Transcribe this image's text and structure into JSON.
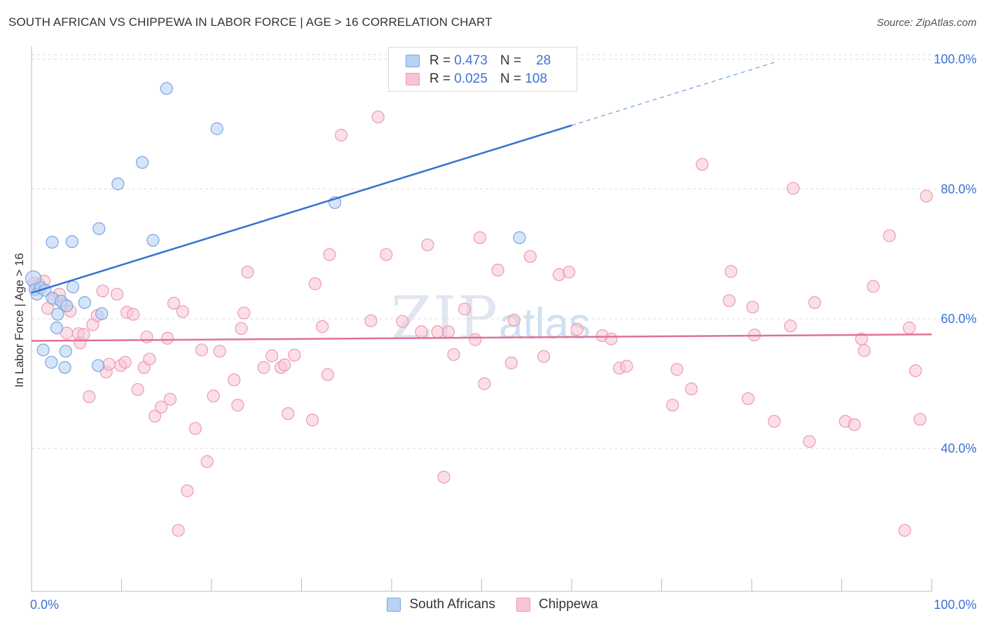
{
  "title": "SOUTH AFRICAN VS CHIPPEWA IN LABOR FORCE | AGE > 16 CORRELATION CHART",
  "source": "Source: ZipAtlas.com",
  "watermark": {
    "zip": "ZIP",
    "atlas": "atlas"
  },
  "legend": {
    "rows": [
      {
        "r_label": "R =",
        "r_value": "0.473",
        "n_label": "N =",
        "n_value": "28"
      },
      {
        "r_label": "R =",
        "r_value": "0.025",
        "n_label": "N =",
        "n_value": "108"
      }
    ],
    "bottom": [
      "South Africans",
      "Chippewa"
    ]
  },
  "colors": {
    "blue_fill": "#b9d2f3",
    "blue_stroke": "#7aa5e0",
    "blue_line": "#3472d0",
    "pink_fill": "#f7c4d4",
    "pink_stroke": "#ec9ab3",
    "pink_line": "#e0709a",
    "grid": "#dddddd",
    "tick_label": "#3b73d6"
  },
  "chart_data": {
    "type": "scatter",
    "title": "SOUTH AFRICAN VS CHIPPEWA IN LABOR FORCE | AGE > 16 CORRELATION CHART",
    "xlabel": "",
    "ylabel": "In Labor Force | Age > 16",
    "xlim": [
      0,
      100
    ],
    "ylim": [
      18,
      102
    ],
    "x_tick_labels": [
      "0.0%",
      "100.0%"
    ],
    "y_tick_labels": [
      "40.0%",
      "60.0%",
      "80.0%",
      "100.0%"
    ],
    "y_ticks": [
      40,
      60,
      80,
      100
    ],
    "grid": true,
    "legend_position": "top-center",
    "series": [
      {
        "name": "South Africans",
        "r": 0.473,
        "n": 28,
        "points": [
          [
            0.2,
            66.2
          ],
          [
            0.4,
            64.5
          ],
          [
            0.6,
            63.8
          ],
          [
            1.0,
            64.8
          ],
          [
            1.5,
            64.4
          ],
          [
            1.3,
            55.2
          ],
          [
            2.2,
            53.3
          ],
          [
            2.3,
            71.8
          ],
          [
            2.3,
            63.2
          ],
          [
            2.8,
            58.6
          ],
          [
            2.9,
            60.7
          ],
          [
            3.3,
            62.7
          ],
          [
            3.7,
            52.5
          ],
          [
            3.8,
            55.0
          ],
          [
            3.9,
            62.0
          ],
          [
            4.5,
            71.9
          ],
          [
            4.6,
            64.9
          ],
          [
            5.9,
            62.5
          ],
          [
            7.4,
            52.8
          ],
          [
            7.5,
            73.9
          ],
          [
            7.8,
            60.8
          ],
          [
            9.6,
            80.8
          ],
          [
            12.3,
            84.1
          ],
          [
            13.5,
            72.1
          ],
          [
            15.0,
            95.5
          ],
          [
            20.6,
            89.3
          ],
          [
            33.7,
            77.9
          ],
          [
            54.2,
            72.5
          ]
        ],
        "trend": {
          "x_start": 0.0,
          "y_start": 64.0,
          "x_end": 60.0,
          "y_end": 89.8,
          "x_dash_end": 82.5,
          "y_dash_end": 99.5
        }
      },
      {
        "name": "Chippewa",
        "r": 0.025,
        "n": 108,
        "points": [
          [
            0.3,
            65.5
          ],
          [
            0.9,
            65.2
          ],
          [
            1.4,
            65.8
          ],
          [
            1.8,
            61.6
          ],
          [
            2.5,
            63.0
          ],
          [
            3.1,
            63.8
          ],
          [
            3.6,
            62.2
          ],
          [
            3.9,
            57.8
          ],
          [
            4.3,
            61.2
          ],
          [
            5.2,
            57.7
          ],
          [
            5.4,
            56.3
          ],
          [
            5.8,
            57.6
          ],
          [
            6.4,
            48.0
          ],
          [
            6.8,
            59.1
          ],
          [
            7.3,
            60.5
          ],
          [
            7.9,
            64.3
          ],
          [
            8.3,
            51.8
          ],
          [
            8.6,
            53.0
          ],
          [
            9.5,
            63.8
          ],
          [
            9.9,
            52.8
          ],
          [
            10.4,
            53.3
          ],
          [
            10.6,
            61.0
          ],
          [
            11.3,
            60.7
          ],
          [
            11.8,
            49.1
          ],
          [
            12.5,
            52.5
          ],
          [
            12.8,
            57.2
          ],
          [
            13.1,
            53.8
          ],
          [
            13.7,
            45.0
          ],
          [
            14.4,
            46.4
          ],
          [
            15.1,
            57.0
          ],
          [
            15.4,
            47.6
          ],
          [
            15.8,
            62.4
          ],
          [
            16.3,
            27.4
          ],
          [
            16.8,
            61.1
          ],
          [
            17.3,
            33.5
          ],
          [
            18.2,
            43.1
          ],
          [
            18.9,
            55.2
          ],
          [
            19.5,
            38.0
          ],
          [
            20.2,
            48.1
          ],
          [
            20.9,
            55.0
          ],
          [
            22.5,
            50.6
          ],
          [
            22.9,
            46.7
          ],
          [
            23.3,
            58.5
          ],
          [
            23.6,
            60.9
          ],
          [
            24.0,
            67.2
          ],
          [
            25.8,
            52.5
          ],
          [
            26.7,
            54.3
          ],
          [
            27.7,
            52.5
          ],
          [
            28.1,
            52.9
          ],
          [
            28.5,
            45.4
          ],
          [
            29.2,
            54.4
          ],
          [
            31.2,
            44.4
          ],
          [
            31.5,
            65.4
          ],
          [
            32.3,
            58.8
          ],
          [
            32.9,
            51.4
          ],
          [
            33.1,
            69.9
          ],
          [
            34.4,
            88.3
          ],
          [
            37.7,
            59.7
          ],
          [
            38.5,
            91.1
          ],
          [
            39.4,
            69.9
          ],
          [
            41.2,
            59.6
          ],
          [
            43.3,
            58.0
          ],
          [
            44.0,
            71.4
          ],
          [
            45.1,
            58.0
          ],
          [
            45.8,
            35.6
          ],
          [
            46.3,
            58.0
          ],
          [
            46.9,
            54.5
          ],
          [
            48.1,
            61.5
          ],
          [
            49.3,
            56.8
          ],
          [
            49.8,
            72.5
          ],
          [
            50.3,
            50.0
          ],
          [
            51.8,
            67.5
          ],
          [
            53.3,
            53.2
          ],
          [
            53.6,
            59.8
          ],
          [
            55.4,
            69.6
          ],
          [
            56.9,
            54.2
          ],
          [
            58.6,
            66.8
          ],
          [
            59.7,
            67.2
          ],
          [
            60.6,
            58.4
          ],
          [
            63.4,
            57.4
          ],
          [
            64.4,
            56.9
          ],
          [
            65.3,
            52.4
          ],
          [
            66.1,
            52.7
          ],
          [
            71.2,
            46.7
          ],
          [
            71.7,
            52.2
          ],
          [
            73.3,
            49.2
          ],
          [
            74.5,
            83.8
          ],
          [
            77.5,
            62.8
          ],
          [
            77.7,
            67.3
          ],
          [
            79.6,
            47.7
          ],
          [
            80.1,
            61.8
          ],
          [
            80.3,
            57.5
          ],
          [
            82.5,
            44.2
          ],
          [
            84.3,
            58.9
          ],
          [
            84.6,
            80.1
          ],
          [
            86.4,
            41.1
          ],
          [
            87.0,
            62.5
          ],
          [
            90.4,
            44.2
          ],
          [
            91.4,
            43.7
          ],
          [
            92.2,
            56.9
          ],
          [
            92.5,
            55.1
          ],
          [
            93.5,
            65.0
          ],
          [
            95.3,
            72.8
          ],
          [
            97.0,
            27.4
          ],
          [
            97.5,
            58.6
          ],
          [
            98.2,
            52.0
          ],
          [
            98.7,
            44.5
          ],
          [
            99.4,
            78.9
          ]
        ],
        "trend": {
          "x_start": 0.0,
          "y_start": 56.6,
          "x_end": 100.0,
          "y_end": 57.6
        }
      }
    ]
  }
}
